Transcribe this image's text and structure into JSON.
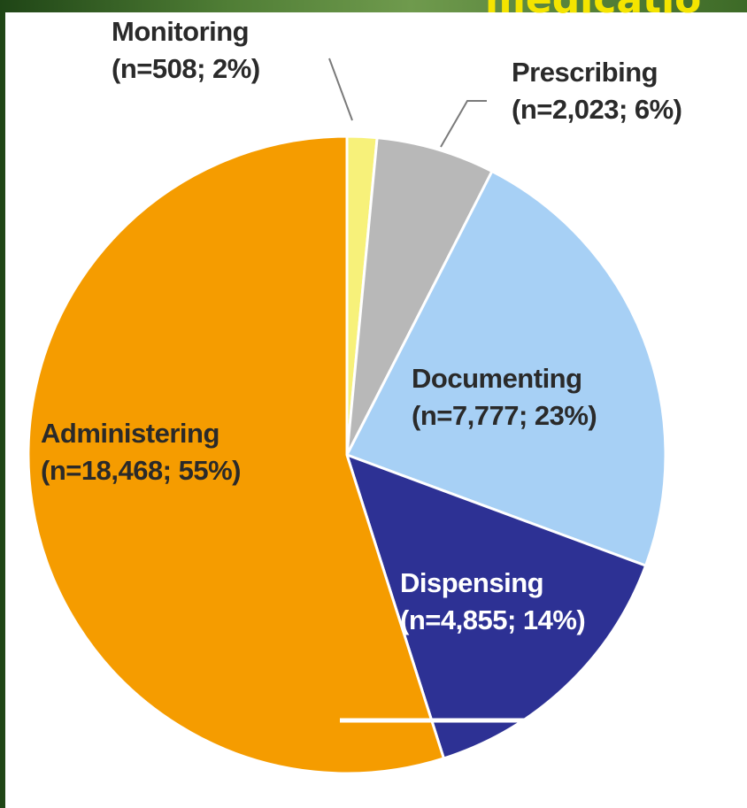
{
  "header": {
    "title_fragment": "medicatio"
  },
  "chart_data": {
    "type": "pie",
    "title": "",
    "slices": [
      {
        "name": "Monitoring",
        "count": 508,
        "count_label": "n=508",
        "percent": 2,
        "value_label": "(n=508; 2%)",
        "color": "#f7f17a"
      },
      {
        "name": "Prescribing",
        "count": 2023,
        "count_label": "n=2,023",
        "percent": 6,
        "value_label": "(n=2,023; 6%)",
        "color": "#b8b8b8"
      },
      {
        "name": "Documenting",
        "count": 7777,
        "count_label": "n=7,777",
        "percent": 23,
        "value_label": "(n=7,777; 23%)",
        "color": "#a7d0f5"
      },
      {
        "name": "Dispensing",
        "count": 4855,
        "count_label": "n=4,855",
        "percent": 14,
        "value_label": "(n=4,855; 14%)",
        "color": "#2d3194"
      },
      {
        "name": "Administering",
        "count": 18468,
        "count_label": "n=18,468",
        "percent": 55,
        "value_label": "(n=18,468; 55%)",
        "color": "#f59c00"
      }
    ],
    "legend": "none",
    "slice_border_color": "#ffffff"
  },
  "colors": {
    "header_text": "#f4e400",
    "frame": "#4f7d35",
    "panel_background": "#ffffff",
    "label_text": "#2a2a2a",
    "label_text_on_dark": "#ffffff",
    "leader_line": "#7a7a7a"
  }
}
